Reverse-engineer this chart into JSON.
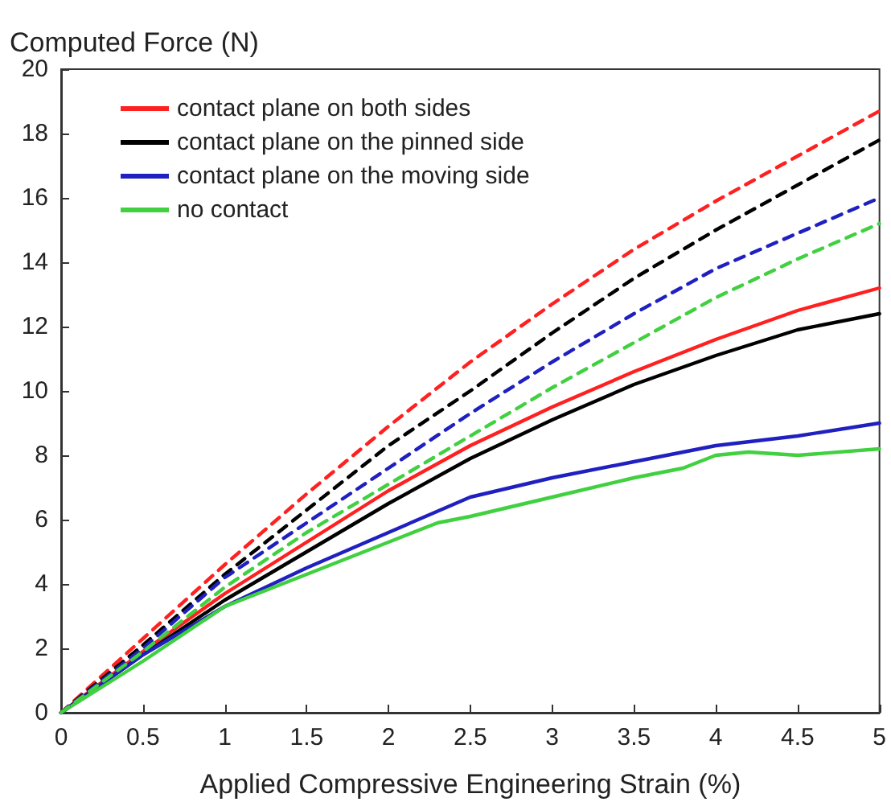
{
  "chart_data": {
    "type": "line",
    "xlabel": "Applied Compressive Engineering Strain (%)",
    "ylabel": "Computed Force (N)",
    "x": [
      0,
      0.5,
      1,
      1.5,
      2,
      2.5,
      3,
      3.5,
      4,
      4.5,
      5
    ],
    "xlim": [
      0,
      5
    ],
    "xticks": [
      0,
      0.5,
      1,
      1.5,
      2,
      2.5,
      3,
      3.5,
      4,
      4.5,
      5
    ],
    "ylim": [
      0,
      20
    ],
    "yticks": [
      0,
      2,
      4,
      6,
      8,
      10,
      12,
      14,
      16,
      18,
      20
    ],
    "grid": false,
    "legend": "top left",
    "marker": "none",
    "series": [
      {
        "name": "contact plane on both sides",
        "color": "#ff2020",
        "line_style": "solid",
        "values": [
          0,
          1.9,
          3.7,
          5.3,
          6.9,
          8.3,
          9.5,
          10.6,
          11.6,
          12.5,
          13.2
        ]
      },
      {
        "name": "contact plane on the pinned side",
        "color": "#000000",
        "line_style": "solid",
        "values": [
          0,
          1.8,
          3.5,
          5.0,
          6.5,
          7.9,
          9.1,
          10.2,
          11.1,
          11.9,
          12.4
        ]
      },
      {
        "name": "contact plane on the moving side",
        "color": "#2020c0",
        "line_style": "solid",
        "values": [
          0,
          1.8,
          3.3,
          4.5,
          5.6,
          6.7,
          7.3,
          7.8,
          8.3,
          8.6,
          9.0
        ]
      },
      {
        "name": "no contact",
        "color": "#40d040",
        "line_style": "solid",
        "x": [
          0,
          0.5,
          1,
          1.5,
          2,
          2.3,
          2.5,
          3,
          3.5,
          3.8,
          4,
          4.2,
          4.5,
          5
        ],
        "values": [
          0,
          1.6,
          3.3,
          4.3,
          5.3,
          5.9,
          6.1,
          6.7,
          7.3,
          7.6,
          8.0,
          8.1,
          8.0,
          8.2
        ]
      },
      {
        "color": "#ff2020",
        "line_style": "dashed",
        "values": [
          0,
          2.3,
          4.6,
          6.8,
          8.9,
          10.9,
          12.7,
          14.4,
          15.9,
          17.3,
          18.7
        ]
      },
      {
        "color": "#000000",
        "line_style": "dashed",
        "values": [
          0,
          2.1,
          4.3,
          6.3,
          8.3,
          10.0,
          11.8,
          13.5,
          15.0,
          16.4,
          17.8
        ]
      },
      {
        "color": "#2020c0",
        "line_style": "dashed",
        "values": [
          0,
          2.0,
          4.2,
          5.9,
          7.6,
          9.3,
          10.9,
          12.4,
          13.8,
          14.9,
          16.0
        ]
      },
      {
        "color": "#40d040",
        "line_style": "dashed",
        "values": [
          0,
          1.9,
          3.9,
          5.6,
          7.1,
          8.6,
          10.1,
          11.5,
          12.9,
          14.1,
          15.2
        ]
      }
    ]
  }
}
